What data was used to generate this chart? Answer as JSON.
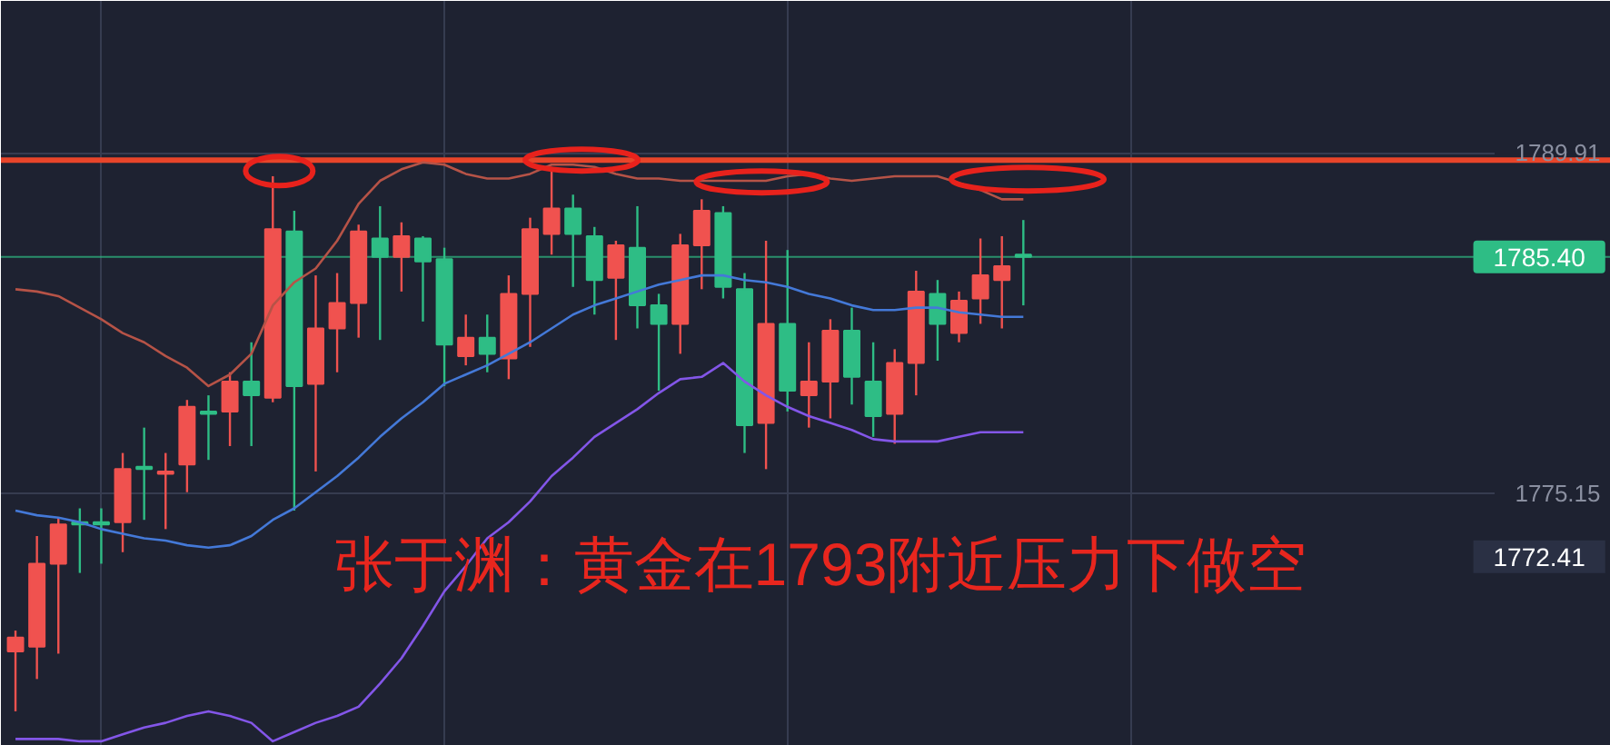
{
  "chart_data": {
    "type": "candlestick",
    "title": "张于渊：黄金在1793附近压力下做空",
    "categories": [
      null,
      null,
      null,
      null,
      null,
      null,
      null,
      null,
      null,
      null,
      null,
      null,
      null,
      null,
      null,
      null,
      null,
      null,
      null,
      null,
      null,
      null,
      null,
      null,
      null,
      null,
      null,
      null,
      null,
      null,
      null,
      null,
      null,
      null,
      null,
      null,
      null,
      null,
      null,
      null,
      null,
      null,
      null,
      null,
      null,
      null,
      null,
      null
    ],
    "ohlc": [
      [
        1768.3,
        1769.2,
        1765.7,
        1768.9
      ],
      [
        1768.5,
        1773.3,
        1767.1,
        1772.1
      ],
      [
        1772.1,
        1774.1,
        1768.2,
        1773.8
      ],
      [
        1773.9,
        1774.5,
        1771.7,
        1773.8
      ],
      [
        1773.9,
        1774.5,
        1772.1,
        1773.8
      ],
      [
        1773.9,
        1776.9,
        1772.6,
        1776.2
      ],
      [
        1776.3,
        1778.0,
        1774.0,
        1776.2
      ],
      [
        1776.0,
        1776.9,
        1773.6,
        1776.1
      ],
      [
        1776.4,
        1779.2,
        1775.2,
        1778.9
      ],
      [
        1778.7,
        1779.4,
        1776.6,
        1778.6
      ],
      [
        1778.7,
        1780.4,
        1777.2,
        1780.0
      ],
      [
        1780.0,
        1781.7,
        1777.2,
        1779.4
      ],
      [
        1779.3,
        1788.9,
        1779.1,
        1786.6
      ],
      [
        1786.5,
        1787.4,
        1774.4,
        1779.8
      ],
      [
        1779.9,
        1784.6,
        1776.1,
        1782.3
      ],
      [
        1782.3,
        1784.7,
        1780.4,
        1783.4
      ],
      [
        1783.4,
        1786.8,
        1781.9,
        1786.5
      ],
      [
        1786.2,
        1787.6,
        1781.8,
        1785.4
      ],
      [
        1785.4,
        1786.9,
        1783.9,
        1786.3
      ],
      [
        1786.2,
        1786.3,
        1782.6,
        1785.2
      ],
      [
        1785.3,
        1785.8,
        1779.8,
        1781.6
      ],
      [
        1781.1,
        1782.9,
        1780.7,
        1781.9
      ],
      [
        1781.9,
        1782.9,
        1780.4,
        1781.2
      ],
      [
        1781.0,
        1784.6,
        1780.1,
        1783.8
      ],
      [
        1783.8,
        1787.1,
        1781.5,
        1786.6
      ],
      [
        1786.4,
        1789.3,
        1785.5,
        1787.5
      ],
      [
        1787.5,
        1788.1,
        1784.1,
        1786.4
      ],
      [
        1786.3,
        1786.7,
        1782.9,
        1784.4
      ],
      [
        1784.5,
        1786.1,
        1781.8,
        1785.9
      ],
      [
        1785.8,
        1787.6,
        1782.3,
        1783.3
      ],
      [
        1783.3,
        1783.8,
        1779.6,
        1782.5
      ],
      [
        1782.5,
        1786.4,
        1781.2,
        1785.9
      ],
      [
        1785.9,
        1787.9,
        1784.0,
        1787.4
      ],
      [
        1787.3,
        1787.6,
        1783.6,
        1784.1
      ],
      [
        1784.0,
        1784.7,
        1776.9,
        1778.1
      ],
      [
        1778.2,
        1786.1,
        1776.2,
        1782.5
      ],
      [
        1782.5,
        1785.7,
        1778.7,
        1779.6
      ],
      [
        1779.4,
        1781.7,
        1778.0,
        1780.0
      ],
      [
        1780.0,
        1782.7,
        1778.4,
        1782.2
      ],
      [
        1782.2,
        1783.2,
        1779.0,
        1780.2
      ],
      [
        1780.0,
        1781.7,
        1777.6,
        1778.5
      ],
      [
        1778.6,
        1781.4,
        1777.3,
        1780.8
      ],
      [
        1780.8,
        1784.8,
        1779.4,
        1783.9
      ],
      [
        1783.8,
        1784.4,
        1780.9,
        1782.5
      ],
      [
        1782.1,
        1783.9,
        1781.7,
        1783.5
      ],
      [
        1783.6,
        1786.2,
        1782.5,
        1784.6
      ],
      [
        1784.4,
        1786.3,
        1782.3,
        1785.0
      ],
      [
        1785.5,
        1787.0,
        1783.3,
        1785.4
      ]
    ],
    "colors": [
      "#f0524f",
      "#f0524f",
      "#f0524f",
      "#2ebd85",
      "#2ebd85",
      "#f0524f",
      "#2ebd85",
      "#f0524f",
      "#f0524f",
      "#2ebd85",
      "#f0524f",
      "#2ebd85",
      "#f0524f",
      "#2ebd85",
      "#f0524f",
      "#f0524f",
      "#f0524f",
      "#2ebd85",
      "#f0524f",
      "#2ebd85",
      "#2ebd85",
      "#f0524f",
      "#2ebd85",
      "#f0524f",
      "#f0524f",
      "#f0524f",
      "#2ebd85",
      "#2ebd85",
      "#f0524f",
      "#2ebd85",
      "#2ebd85",
      "#f0524f",
      "#f0524f",
      "#2ebd85",
      "#2ebd85",
      "#f0524f",
      "#2ebd85",
      "#f0524f",
      "#f0524f",
      "#2ebd85",
      "#2ebd85",
      "#f0524f",
      "#f0524f",
      "#2ebd85",
      "#f0524f",
      "#f0524f",
      "#f0524f",
      "#2ebd85"
    ],
    "series": [
      {
        "type": "line",
        "color": "#b65347",
        "values": [
          1784.0,
          1783.9,
          1783.7,
          1783.2,
          1782.7,
          1782.1,
          1781.7,
          1781.1,
          1780.6,
          1779.8,
          1780.3,
          1781.2,
          1783.3,
          1784.3,
          1784.9,
          1786.1,
          1787.7,
          1788.7,
          1789.2,
          1789.5,
          1789.4,
          1789.0,
          1788.8,
          1788.8,
          1789.0,
          1789.4,
          1789.4,
          1789.3,
          1789.0,
          1788.8,
          1788.8,
          1788.7,
          1788.7,
          1788.7,
          1788.7,
          1788.7,
          1788.9,
          1789.0,
          1788.8,
          1788.7,
          1788.8,
          1788.9,
          1788.9,
          1788.9,
          1788.6,
          1788.3,
          1787.9,
          1787.9
        ]
      },
      {
        "type": "line",
        "color": "#4479d8",
        "values": [
          1774.4,
          1774.2,
          1774.1,
          1773.9,
          1773.6,
          1773.4,
          1773.2,
          1773.1,
          1772.9,
          1772.8,
          1772.9,
          1773.3,
          1774.0,
          1774.5,
          1775.2,
          1775.9,
          1776.7,
          1777.6,
          1778.4,
          1779.1,
          1779.9,
          1780.3,
          1780.7,
          1781.2,
          1781.7,
          1782.3,
          1782.9,
          1783.3,
          1783.6,
          1783.9,
          1784.2,
          1784.4,
          1784.6,
          1784.6,
          1784.4,
          1784.3,
          1784.1,
          1783.8,
          1783.6,
          1783.3,
          1783.1,
          1783.1,
          1783.2,
          1783.2,
          1783.0,
          1782.9,
          1782.8,
          1782.8
        ]
      },
      {
        "type": "line",
        "color": "#8356e8",
        "values": [
          1764.5,
          1764.5,
          1764.5,
          1764.4,
          1764.4,
          1764.7,
          1765.0,
          1765.2,
          1765.5,
          1765.7,
          1765.5,
          1765.2,
          1764.4,
          1764.8,
          1765.2,
          1765.5,
          1765.9,
          1766.9,
          1768.0,
          1769.4,
          1770.9,
          1772.0,
          1773.2,
          1773.9,
          1774.8,
          1775.9,
          1776.7,
          1777.6,
          1778.2,
          1778.8,
          1779.5,
          1780.1,
          1780.2,
          1780.8,
          1780.0,
          1779.4,
          1778.9,
          1778.5,
          1778.2,
          1777.9,
          1777.5,
          1777.4,
          1777.4,
          1777.4,
          1777.6,
          1777.8,
          1777.8,
          1777.8
        ]
      }
    ],
    "ylim": [
      1764.2,
      1796.5
    ],
    "yticks": [
      1775.15,
      1789.91
    ],
    "ref_lines": [
      {
        "axis": "y",
        "value": 1789.6,
        "color": "#e8452a"
      },
      {
        "axis": "y",
        "value": 1785.4,
        "label": "1785.40",
        "color": "#2ebd85"
      }
    ],
    "annotations": [
      "1772.41"
    ],
    "grid": true,
    "tick_labels": "y"
  }
}
